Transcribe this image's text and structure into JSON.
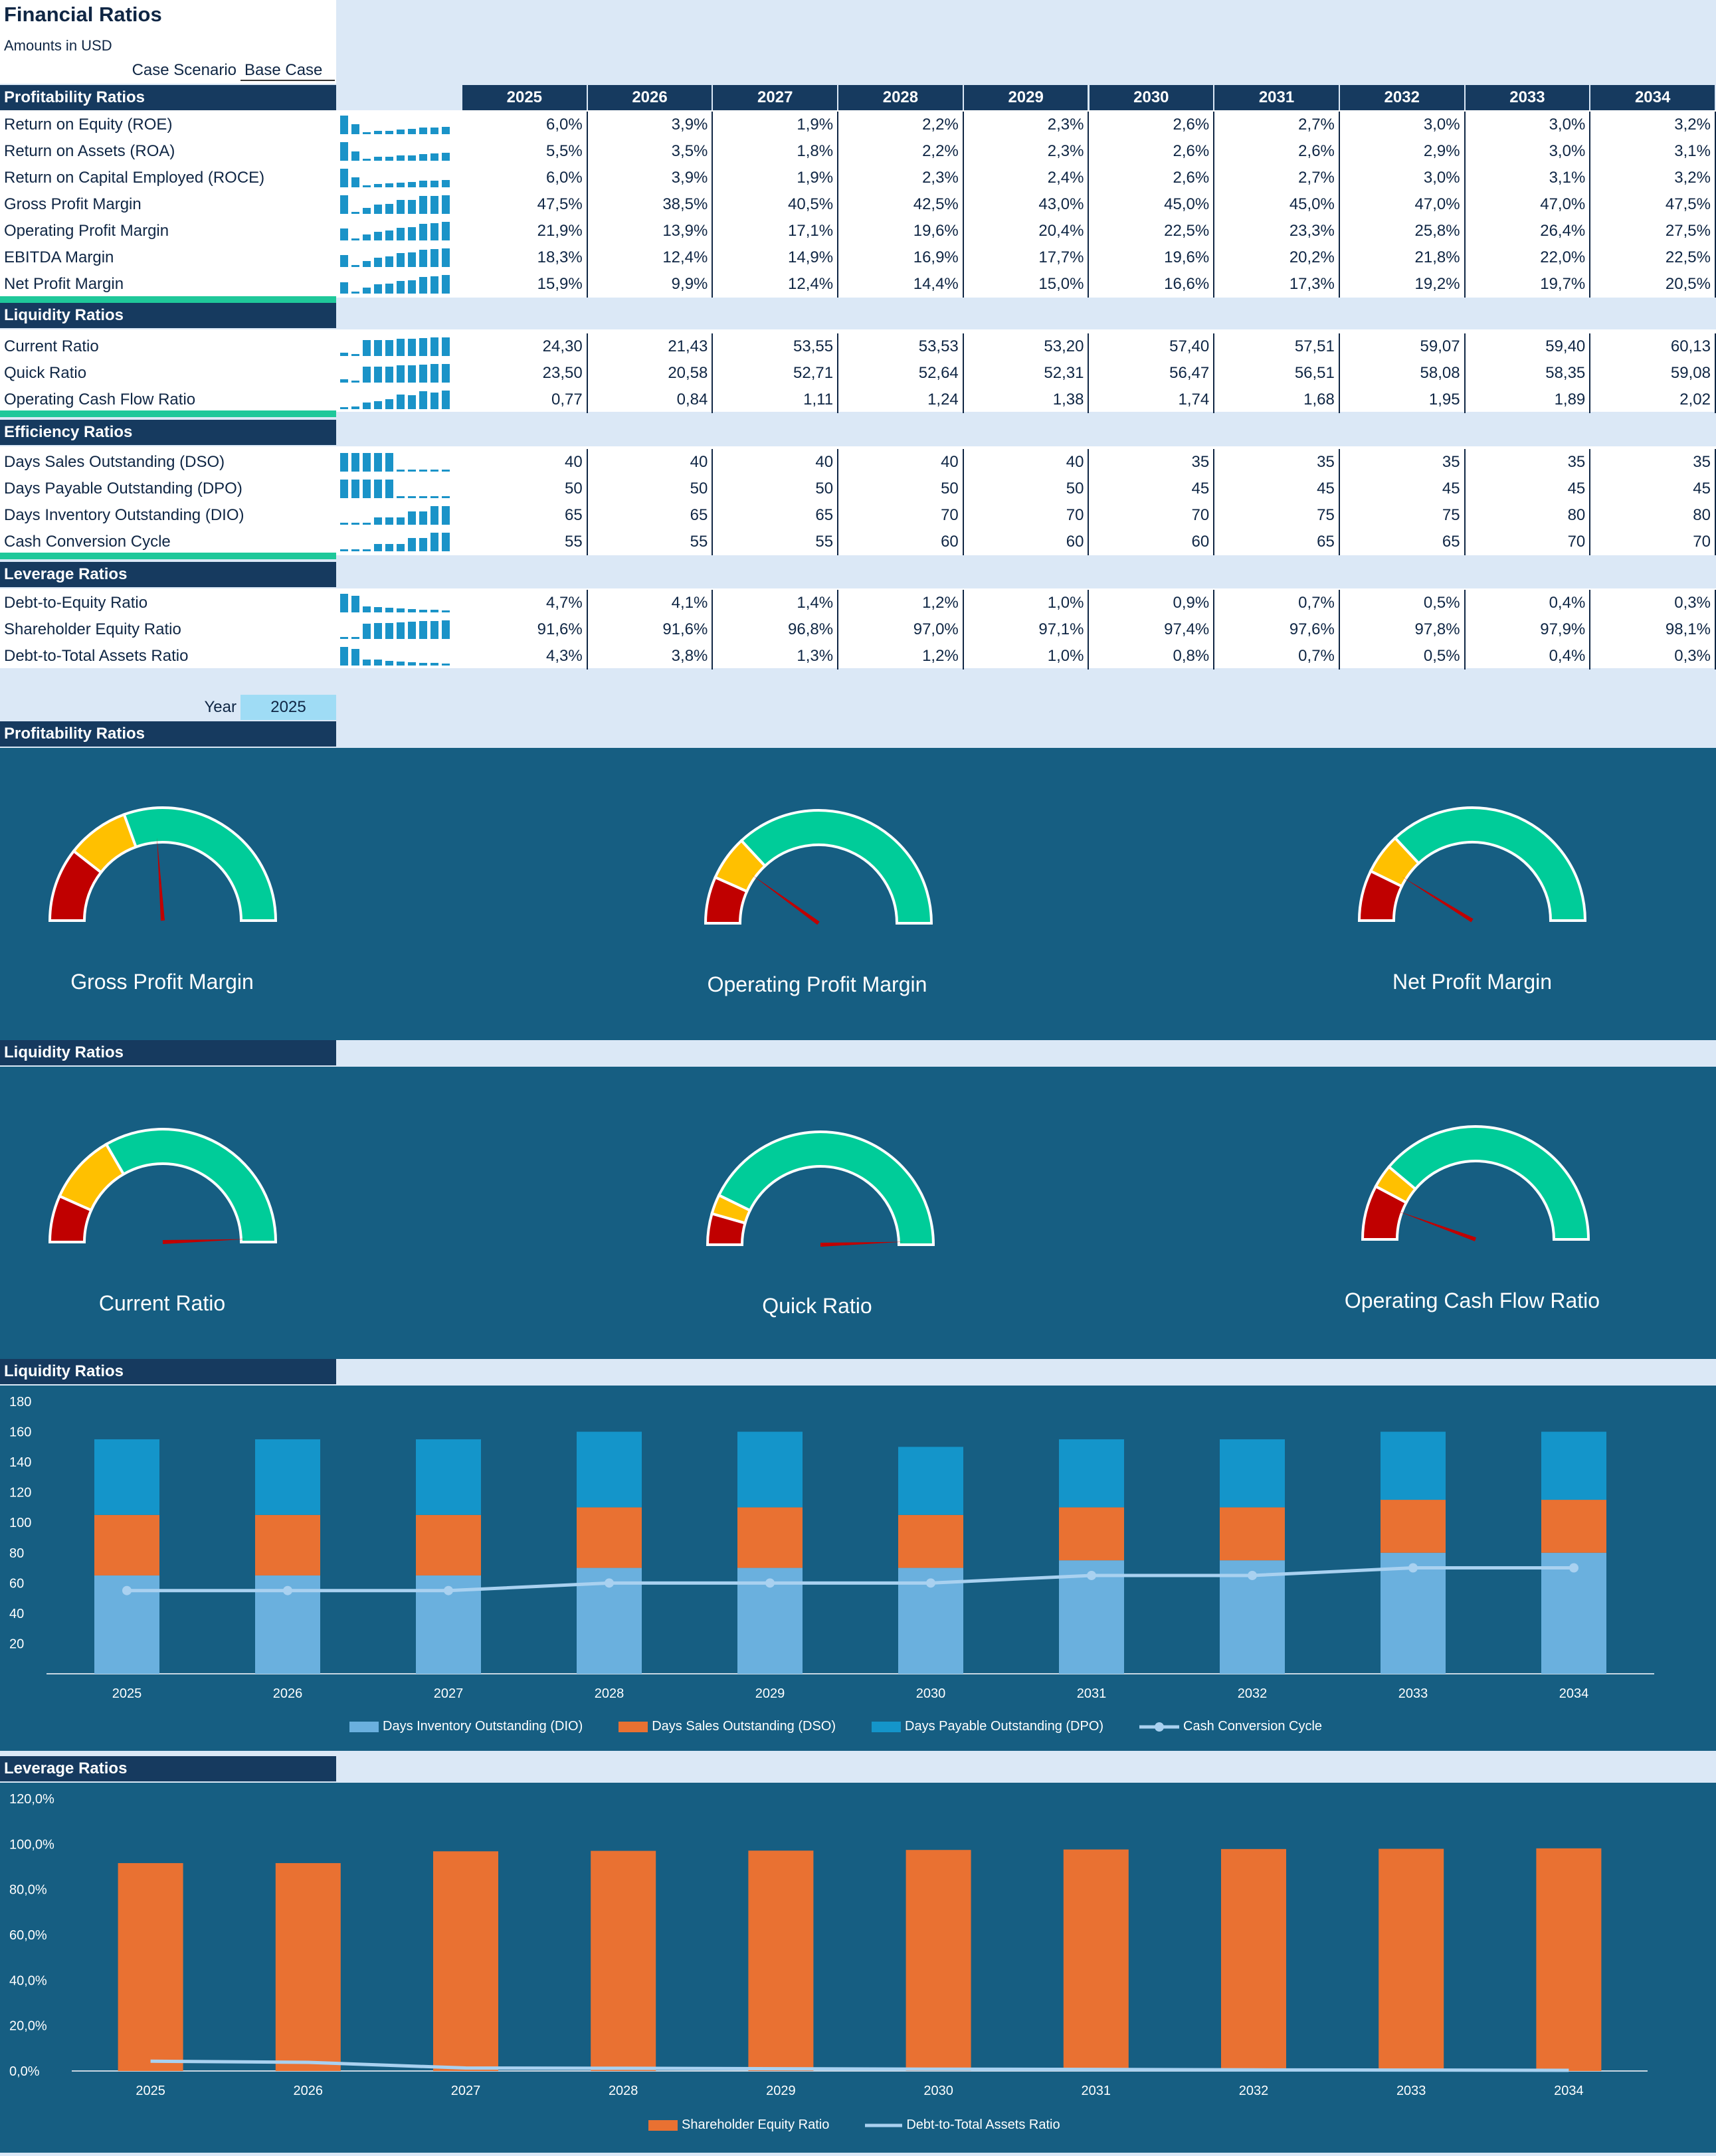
{
  "header": {
    "title": "Financial Ratios",
    "subtitle": "Amounts in USD",
    "scenario_label": "Case Scenario",
    "scenario_value": "Base Case"
  },
  "years": [
    "2025",
    "2026",
    "2027",
    "2028",
    "2029",
    "2030",
    "2031",
    "2032",
    "2033",
    "2034"
  ],
  "sections": [
    {
      "title": "Profitability Ratios",
      "rows": [
        {
          "label": "Return on Equity (ROE)",
          "values": [
            "6,0%",
            "3,9%",
            "1,9%",
            "2,2%",
            "2,3%",
            "2,6%",
            "2,7%",
            "3,0%",
            "3,0%",
            "3,2%"
          ],
          "spark": [
            6.0,
            3.9,
            1.9,
            2.2,
            2.3,
            2.6,
            2.7,
            3.0,
            3.0,
            3.2
          ]
        },
        {
          "label": "Return on Assets (ROA)",
          "values": [
            "5,5%",
            "3,5%",
            "1,8%",
            "2,2%",
            "2,3%",
            "2,6%",
            "2,6%",
            "2,9%",
            "3,0%",
            "3,1%"
          ],
          "spark": [
            5.5,
            3.5,
            1.8,
            2.2,
            2.3,
            2.6,
            2.6,
            2.9,
            3.0,
            3.1
          ]
        },
        {
          "label": "Return on Capital Employed (ROCE)",
          "values": [
            "6,0%",
            "3,9%",
            "1,9%",
            "2,3%",
            "2,4%",
            "2,6%",
            "2,7%",
            "3,0%",
            "3,1%",
            "3,2%"
          ],
          "spark": [
            6.0,
            3.9,
            1.9,
            2.3,
            2.4,
            2.6,
            2.7,
            3.0,
            3.1,
            3.2
          ]
        },
        {
          "label": "Gross Profit Margin",
          "values": [
            "47,5%",
            "38,5%",
            "40,5%",
            "42,5%",
            "43,0%",
            "45,0%",
            "45,0%",
            "47,0%",
            "47,0%",
            "47,5%"
          ],
          "spark": [
            47.5,
            38.5,
            40.5,
            42.5,
            43.0,
            45.0,
            45.0,
            47.0,
            47.0,
            47.5
          ]
        },
        {
          "label": "Operating Profit Margin",
          "values": [
            "21,9%",
            "13,9%",
            "17,1%",
            "19,6%",
            "20,4%",
            "22,5%",
            "23,3%",
            "25,8%",
            "26,4%",
            "27,5%"
          ],
          "spark": [
            21.9,
            13.9,
            17.1,
            19.6,
            20.4,
            22.5,
            23.3,
            25.8,
            26.4,
            27.5
          ]
        },
        {
          "label": "EBITDA Margin",
          "values": [
            "18,3%",
            "12,4%",
            "14,9%",
            "16,9%",
            "17,7%",
            "19,6%",
            "20,2%",
            "21,8%",
            "22,0%",
            "22,5%"
          ],
          "spark": [
            18.3,
            12.4,
            14.9,
            16.9,
            17.7,
            19.6,
            20.2,
            21.8,
            22.0,
            22.5
          ]
        },
        {
          "label": "Net Profit Margin",
          "values": [
            "15,9%",
            "9,9%",
            "12,4%",
            "14,4%",
            "15,0%",
            "16,6%",
            "17,3%",
            "19,2%",
            "19,7%",
            "20,5%"
          ],
          "spark": [
            15.9,
            9.9,
            12.4,
            14.4,
            15.0,
            16.6,
            17.3,
            19.2,
            19.7,
            20.5
          ]
        }
      ]
    },
    {
      "title": "Liquidity Ratios",
      "rows": [
        {
          "label": "Current Ratio",
          "values": [
            "24,30",
            "21,43",
            "53,55",
            "53,53",
            "53,20",
            "57,40",
            "57,51",
            "59,07",
            "59,40",
            "60,13"
          ],
          "spark": [
            24.3,
            21.43,
            53.55,
            53.53,
            53.2,
            57.4,
            57.51,
            59.07,
            59.4,
            60.13
          ]
        },
        {
          "label": "Quick Ratio",
          "values": [
            "23,50",
            "20,58",
            "52,71",
            "52,64",
            "52,31",
            "56,47",
            "56,51",
            "58,08",
            "58,35",
            "59,08"
          ],
          "spark": [
            23.5,
            20.58,
            52.71,
            52.64,
            52.31,
            56.47,
            56.51,
            58.08,
            58.35,
            59.08
          ]
        },
        {
          "label": "Operating Cash Flow Ratio",
          "values": [
            "0,77",
            "0,84",
            "1,11",
            "1,24",
            "1,38",
            "1,74",
            "1,68",
            "1,95",
            "1,89",
            "2,02"
          ],
          "spark": [
            0.77,
            0.84,
            1.11,
            1.24,
            1.38,
            1.74,
            1.68,
            1.95,
            1.89,
            2.02
          ]
        }
      ]
    },
    {
      "title": "Efficiency Ratios",
      "rows": [
        {
          "label": "Days Sales Outstanding (DSO)",
          "values": [
            "40",
            "40",
            "40",
            "40",
            "40",
            "35",
            "35",
            "35",
            "35",
            "35"
          ],
          "spark": [
            40,
            40,
            40,
            40,
            40,
            35,
            35,
            35,
            35,
            35
          ]
        },
        {
          "label": "Days Payable Outstanding (DPO)",
          "values": [
            "50",
            "50",
            "50",
            "50",
            "50",
            "45",
            "45",
            "45",
            "45",
            "45"
          ],
          "spark": [
            50,
            50,
            50,
            50,
            50,
            45,
            45,
            45,
            45,
            45
          ]
        },
        {
          "label": "Days Inventory Outstanding (DIO)",
          "values": [
            "65",
            "65",
            "65",
            "70",
            "70",
            "70",
            "75",
            "75",
            "80",
            "80"
          ],
          "spark": [
            65,
            65,
            65,
            70,
            70,
            70,
            75,
            75,
            80,
            80
          ]
        },
        {
          "label": "Cash Conversion Cycle",
          "values": [
            "55",
            "55",
            "55",
            "60",
            "60",
            "60",
            "65",
            "65",
            "70",
            "70"
          ],
          "spark": [
            55,
            55,
            55,
            60,
            60,
            60,
            65,
            65,
            70,
            70
          ]
        }
      ]
    },
    {
      "title": "Leverage Ratios",
      "rows": [
        {
          "label": "Debt-to-Equity Ratio",
          "values": [
            "4,7%",
            "4,1%",
            "1,4%",
            "1,2%",
            "1,0%",
            "0,9%",
            "0,7%",
            "0,5%",
            "0,4%",
            "0,3%"
          ],
          "spark": [
            4.7,
            4.1,
            1.4,
            1.2,
            1.0,
            0.9,
            0.7,
            0.5,
            0.4,
            0.3
          ]
        },
        {
          "label": "Shareholder Equity Ratio",
          "values": [
            "91,6%",
            "91,6%",
            "96,8%",
            "97,0%",
            "97,1%",
            "97,4%",
            "97,6%",
            "97,8%",
            "97,9%",
            "98,1%"
          ],
          "spark": [
            91.6,
            91.6,
            96.8,
            97.0,
            97.1,
            97.4,
            97.6,
            97.8,
            97.9,
            98.1
          ]
        },
        {
          "label": "Debt-to-Total Assets Ratio",
          "values": [
            "4,3%",
            "3,8%",
            "1,3%",
            "1,2%",
            "1,0%",
            "0,8%",
            "0,7%",
            "0,5%",
            "0,4%",
            "0,3%"
          ],
          "spark": [
            4.3,
            3.8,
            1.3,
            1.2,
            1.0,
            0.8,
            0.7,
            0.5,
            0.4,
            0.3
          ]
        }
      ]
    }
  ],
  "year_selector": {
    "label": "Year",
    "value": "2025"
  },
  "dashboard": {
    "profitability_title": "Profitability Ratios",
    "liquidity_gauges_title": "Liquidity Ratios",
    "liquidity_chart_title": "Liquidity Ratios",
    "leverage_chart_title": "Leverage Ratios",
    "profitability_gauges": [
      {
        "label": "Gross Profit Margin",
        "value": 47.5
      },
      {
        "label": "Operating Profit Margin",
        "value": 21.9
      },
      {
        "label": "Net Profit Margin",
        "value": 15.9
      }
    ],
    "liquidity_gauges": [
      {
        "label": "Current Ratio",
        "value": 24.3
      },
      {
        "label": "Quick Ratio",
        "value": 23.5
      },
      {
        "label": "Operating Cash Flow Ratio",
        "value": 0.77
      }
    ]
  },
  "colors": {
    "navy": "#163a5f",
    "panel": "#165e82",
    "gauge_red": "#c00000",
    "gauge_yellow": "#ffc000",
    "gauge_green": "#00cc99",
    "dio": "#6ab0de",
    "dso": "#e97132",
    "dpo": "#1495ca",
    "ccc": "#a9d1f0"
  },
  "chart_data": [
    {
      "type": "bar",
      "stacked": true,
      "categories": [
        "2025",
        "2026",
        "2027",
        "2028",
        "2029",
        "2030",
        "2031",
        "2032",
        "2033",
        "2034"
      ],
      "series": [
        {
          "name": "Days Inventory Outstanding (DIO)",
          "type": "bar",
          "values": [
            65,
            65,
            65,
            70,
            70,
            70,
            75,
            75,
            80,
            80
          ]
        },
        {
          "name": "Days Sales Outstanding (DSO)",
          "type": "bar",
          "values": [
            40,
            40,
            40,
            40,
            40,
            35,
            35,
            35,
            35,
            35
          ]
        },
        {
          "name": "Days Payable Outstanding (DPO)",
          "type": "bar",
          "values": [
            50,
            50,
            50,
            50,
            50,
            45,
            45,
            45,
            45,
            45
          ]
        },
        {
          "name": "Cash Conversion Cycle",
          "type": "line",
          "values": [
            55,
            55,
            55,
            60,
            60,
            60,
            65,
            65,
            70,
            70
          ]
        }
      ],
      "yticks": [
        "20",
        "40",
        "60",
        "80",
        "100",
        "120",
        "140",
        "160",
        "180"
      ],
      "ylim": [
        0,
        180
      ],
      "legend": "bottom"
    },
    {
      "type": "bar",
      "categories": [
        "2025",
        "2026",
        "2027",
        "2028",
        "2029",
        "2030",
        "2031",
        "2032",
        "2033",
        "2034"
      ],
      "series": [
        {
          "name": "Shareholder Equity Ratio",
          "type": "bar",
          "values": [
            91.6,
            91.6,
            96.8,
            97.0,
            97.1,
            97.4,
            97.6,
            97.8,
            97.9,
            98.1
          ]
        },
        {
          "name": "Debt-to-Total Assets Ratio",
          "type": "line",
          "values": [
            4.3,
            3.8,
            1.3,
            1.2,
            1.0,
            0.8,
            0.7,
            0.5,
            0.4,
            0.3
          ]
        }
      ],
      "yticks": [
        "0,0%",
        "20,0%",
        "40,0%",
        "60,0%",
        "80,0%",
        "100,0%",
        "120,0%"
      ],
      "ylim": [
        0,
        120
      ],
      "legend": "bottom"
    }
  ]
}
